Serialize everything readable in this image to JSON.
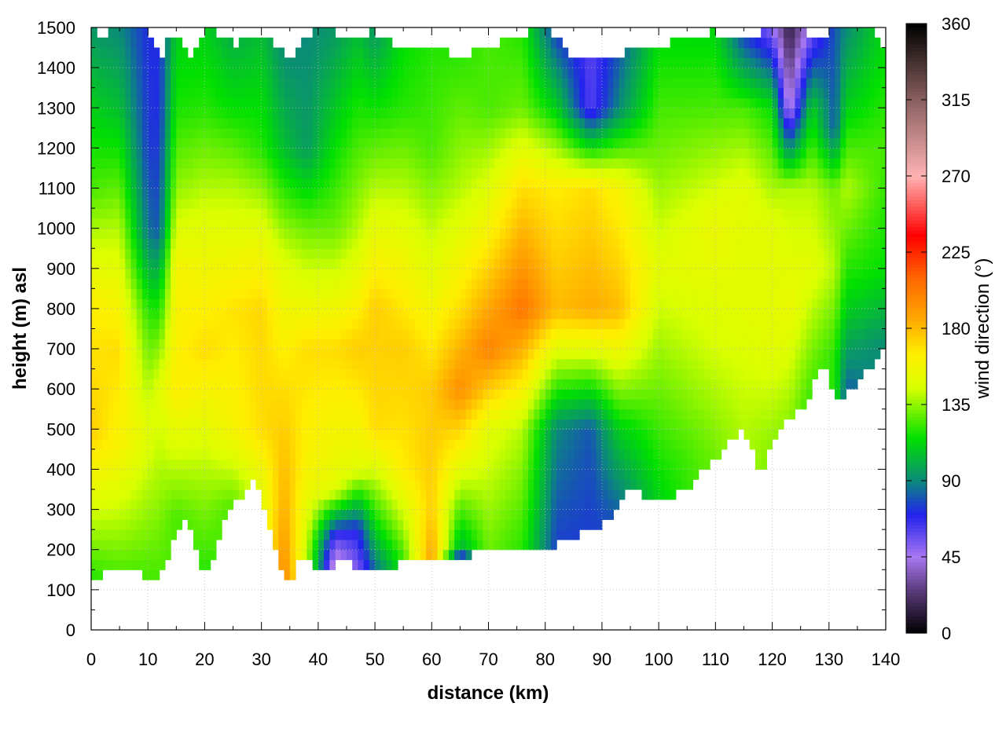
{
  "chart_data": {
    "type": "heatmap",
    "title": "",
    "xlabel": "distance (km)",
    "ylabel": "height (m) asl",
    "xlim": [
      0,
      140
    ],
    "ylim": [
      0,
      1500
    ],
    "x_ticks": [
      "0",
      "10",
      "20",
      "30",
      "40",
      "50",
      "60",
      "70",
      "80",
      "90",
      "100",
      "110",
      "120",
      "130",
      "140"
    ],
    "y_ticks": [
      "0",
      "100",
      "200",
      "300",
      "400",
      "500",
      "600",
      "700",
      "800",
      "900",
      "1000",
      "1100",
      "1200",
      "1300",
      "1400",
      "1500"
    ],
    "grid": true,
    "colorbar": {
      "label": "wind direction (°)",
      "range": [
        0,
        360
      ],
      "ticks": [
        "0",
        "45",
        "90",
        "135",
        "180",
        "225",
        "270",
        "315",
        "360"
      ],
      "stops": [
        {
          "v": 0,
          "color": "#000000"
        },
        {
          "v": 25,
          "color": "#5a3a7a"
        },
        {
          "v": 45,
          "color": "#a878f0"
        },
        {
          "v": 70,
          "color": "#2222ee"
        },
        {
          "v": 90,
          "color": "#0b8a7a"
        },
        {
          "v": 115,
          "color": "#00e000"
        },
        {
          "v": 145,
          "color": "#d8ff00"
        },
        {
          "v": 165,
          "color": "#ffee00"
        },
        {
          "v": 185,
          "color": "#ffaa00"
        },
        {
          "v": 210,
          "color": "#ff6600"
        },
        {
          "v": 235,
          "color": "#ff0000"
        },
        {
          "v": 270,
          "color": "#ffb3b3"
        },
        {
          "v": 315,
          "color": "#8a6060"
        },
        {
          "v": 360,
          "color": "#000000"
        }
      ]
    },
    "terrain": {
      "x": [
        0,
        1,
        3,
        5,
        8,
        11,
        12,
        14,
        16,
        18,
        19,
        20,
        22,
        24,
        26,
        29,
        31,
        33,
        35,
        36,
        37,
        38,
        40,
        42,
        43,
        44,
        46,
        48,
        50,
        52,
        55,
        58,
        60,
        62,
        64,
        65,
        67,
        70,
        75,
        80,
        85,
        90,
        95,
        100,
        105,
        110,
        115,
        118,
        120,
        122,
        126,
        129,
        130,
        132,
        134,
        137,
        140
      ],
      "y": [
        140,
        130,
        150,
        145,
        140,
        135,
        130,
        200,
        280,
        250,
        160,
        145,
        200,
        300,
        330,
        370,
        290,
        180,
        95,
        150,
        190,
        170,
        150,
        165,
        150,
        190,
        160,
        140,
        140,
        155,
        165,
        180,
        180,
        175,
        170,
        160,
        190,
        200,
        195,
        200,
        230,
        260,
        350,
        310,
        350,
        430,
        500,
        390,
        460,
        520,
        560,
        680,
        600,
        570,
        600,
        650,
        720
      ]
    },
    "top_boundary": {
      "x": [
        0,
        2,
        4,
        8,
        10,
        12,
        14,
        16,
        18,
        20,
        25,
        30,
        35,
        40,
        45,
        50,
        55,
        60,
        65,
        70,
        75,
        80,
        85,
        90,
        95,
        100,
        105,
        110,
        115,
        120,
        125,
        128,
        130,
        135,
        138,
        140
      ],
      "y": [
        1500,
        1480,
        1500,
        1500,
        1495,
        1420,
        1480,
        1470,
        1420,
        1500,
        1460,
        1480,
        1430,
        1500,
        1480,
        1490,
        1440,
        1450,
        1430,
        1450,
        1480,
        1500,
        1430,
        1420,
        1440,
        1450,
        1480,
        1490,
        1460,
        1500,
        1500,
        1460,
        1490,
        1500,
        1490,
        1440
      ]
    },
    "field": [
      {
        "x": 0,
        "y": [
          [
            130,
            120
          ],
          [
            500,
            175
          ],
          [
            800,
            165
          ],
          [
            1100,
            125
          ],
          [
            1300,
            110
          ],
          [
            1480,
            95
          ]
        ]
      },
      {
        "x": 5,
        "y": [
          [
            140,
            125
          ],
          [
            450,
            160
          ],
          [
            700,
            170
          ],
          [
            1000,
            140
          ],
          [
            1300,
            105
          ],
          [
            1500,
            90
          ]
        ]
      },
      {
        "x": 10,
        "y": [
          [
            140,
            125
          ],
          [
            500,
            150
          ],
          [
            800,
            120
          ],
          [
            1000,
            85
          ],
          [
            1200,
            75
          ],
          [
            1500,
            72
          ]
        ]
      },
      {
        "x": 12,
        "y": [
          [
            140,
            125
          ],
          [
            600,
            150
          ],
          [
            850,
            110
          ],
          [
            1000,
            80
          ],
          [
            1300,
            72
          ],
          [
            1500,
            72
          ]
        ]
      },
      {
        "x": 15,
        "y": [
          [
            280,
            125
          ],
          [
            600,
            165
          ],
          [
            900,
            160
          ],
          [
            1100,
            135
          ],
          [
            1300,
            118
          ],
          [
            1480,
            110
          ]
        ]
      },
      {
        "x": 20,
        "y": [
          [
            150,
            120
          ],
          [
            400,
            140
          ],
          [
            700,
            170
          ],
          [
            1000,
            150
          ],
          [
            1300,
            120
          ],
          [
            1500,
            110
          ]
        ]
      },
      {
        "x": 25,
        "y": [
          [
            300,
            125
          ],
          [
            500,
            160
          ],
          [
            800,
            168
          ],
          [
            1100,
            140
          ],
          [
            1300,
            115
          ],
          [
            1480,
            100
          ]
        ]
      },
      {
        "x": 30,
        "y": [
          [
            350,
            150
          ],
          [
            500,
            170
          ],
          [
            800,
            172
          ],
          [
            1000,
            150
          ],
          [
            1200,
            120
          ],
          [
            1480,
            105
          ]
        ]
      },
      {
        "x": 34,
        "y": [
          [
            100,
            200
          ],
          [
            300,
            185
          ],
          [
            600,
            170
          ],
          [
            900,
            150
          ],
          [
            1200,
            105
          ],
          [
            1450,
            90
          ]
        ]
      },
      {
        "x": 38,
        "y": [
          [
            180,
            140
          ],
          [
            400,
            160
          ],
          [
            700,
            170
          ],
          [
            1000,
            130
          ],
          [
            1200,
            95
          ],
          [
            1480,
            90
          ]
        ]
      },
      {
        "x": 43,
        "y": [
          [
            150,
            30
          ],
          [
            230,
            60
          ],
          [
            350,
            150
          ],
          [
            700,
            170
          ],
          [
            1000,
            130
          ],
          [
            1480,
            95
          ]
        ]
      },
      {
        "x": 47,
        "y": [
          [
            160,
            55
          ],
          [
            250,
            70
          ],
          [
            400,
            150
          ],
          [
            700,
            175
          ],
          [
            1000,
            140
          ],
          [
            1480,
            105
          ]
        ]
      },
      {
        "x": 50,
        "y": [
          [
            140,
            80
          ],
          [
            250,
            110
          ],
          [
            500,
            170
          ],
          [
            800,
            175
          ],
          [
            1100,
            140
          ],
          [
            1480,
            95
          ]
        ]
      },
      {
        "x": 55,
        "y": [
          [
            160,
            120
          ],
          [
            400,
            165
          ],
          [
            700,
            175
          ],
          [
            1000,
            150
          ],
          [
            1300,
            120
          ],
          [
            1450,
            115
          ]
        ]
      },
      {
        "x": 60,
        "y": [
          [
            180,
            190
          ],
          [
            300,
            175
          ],
          [
            600,
            175
          ],
          [
            900,
            150
          ],
          [
            1200,
            125
          ],
          [
            1450,
            120
          ]
        ]
      },
      {
        "x": 65,
        "y": [
          [
            160,
            15
          ],
          [
            200,
            100
          ],
          [
            400,
            150
          ],
          [
            600,
            195
          ],
          [
            800,
            170
          ],
          [
            1100,
            140
          ],
          [
            1440,
            120
          ]
        ]
      },
      {
        "x": 70,
        "y": [
          [
            200,
            130
          ],
          [
            500,
            150
          ],
          [
            700,
            200
          ],
          [
            1000,
            160
          ],
          [
            1300,
            125
          ],
          [
            1450,
            125
          ]
        ]
      },
      {
        "x": 76,
        "y": [
          [
            200,
            120
          ],
          [
            500,
            140
          ],
          [
            800,
            205
          ],
          [
            1100,
            170
          ],
          [
            1300,
            130
          ],
          [
            1480,
            120
          ]
        ]
      },
      {
        "x": 82,
        "y": [
          [
            200,
            75
          ],
          [
            500,
            90
          ],
          [
            800,
            180
          ],
          [
            1100,
            165
          ],
          [
            1300,
            110
          ],
          [
            1500,
            72
          ]
        ]
      },
      {
        "x": 88,
        "y": [
          [
            240,
            75
          ],
          [
            500,
            80
          ],
          [
            800,
            185
          ],
          [
            1100,
            170
          ],
          [
            1300,
            60
          ],
          [
            1420,
            60
          ]
        ]
      },
      {
        "x": 93,
        "y": [
          [
            280,
            80
          ],
          [
            500,
            110
          ],
          [
            800,
            180
          ],
          [
            1100,
            160
          ],
          [
            1300,
            90
          ],
          [
            1440,
            80
          ]
        ]
      },
      {
        "x": 100,
        "y": [
          [
            310,
            110
          ],
          [
            600,
            130
          ],
          [
            900,
            150
          ],
          [
            1200,
            130
          ],
          [
            1450,
            115
          ]
        ]
      },
      {
        "x": 110,
        "y": [
          [
            430,
            130
          ],
          [
            700,
            145
          ],
          [
            1000,
            155
          ],
          [
            1300,
            125
          ],
          [
            1490,
            112
          ]
        ]
      },
      {
        "x": 115,
        "y": [
          [
            500,
            140
          ],
          [
            800,
            150
          ],
          [
            1100,
            150
          ],
          [
            1300,
            125
          ],
          [
            1480,
            75
          ]
        ]
      },
      {
        "x": 120,
        "y": [
          [
            400,
            130
          ],
          [
            700,
            150
          ],
          [
            1000,
            150
          ],
          [
            1300,
            115
          ],
          [
            1500,
            50
          ]
        ]
      },
      {
        "x": 123,
        "y": [
          [
            460,
            130
          ],
          [
            800,
            155
          ],
          [
            1100,
            140
          ],
          [
            1300,
            40
          ],
          [
            1480,
            15
          ]
        ]
      },
      {
        "x": 127,
        "y": [
          [
            560,
            120
          ],
          [
            900,
            150
          ],
          [
            1100,
            140
          ],
          [
            1300,
            110
          ],
          [
            1490,
            55
          ]
        ]
      },
      {
        "x": 131,
        "y": [
          [
            680,
            120
          ],
          [
            900,
            140
          ],
          [
            1100,
            130
          ],
          [
            1250,
            80
          ],
          [
            1490,
            80
          ]
        ]
      },
      {
        "x": 133,
        "y": [
          [
            550,
            75
          ],
          [
            800,
            110
          ],
          [
            1100,
            140
          ],
          [
            1300,
            110
          ],
          [
            1500,
            90
          ]
        ]
      },
      {
        "x": 140,
        "y": [
          [
            700,
            90
          ],
          [
            900,
            115
          ],
          [
            1200,
            125
          ],
          [
            1440,
            115
          ]
        ]
      }
    ]
  }
}
